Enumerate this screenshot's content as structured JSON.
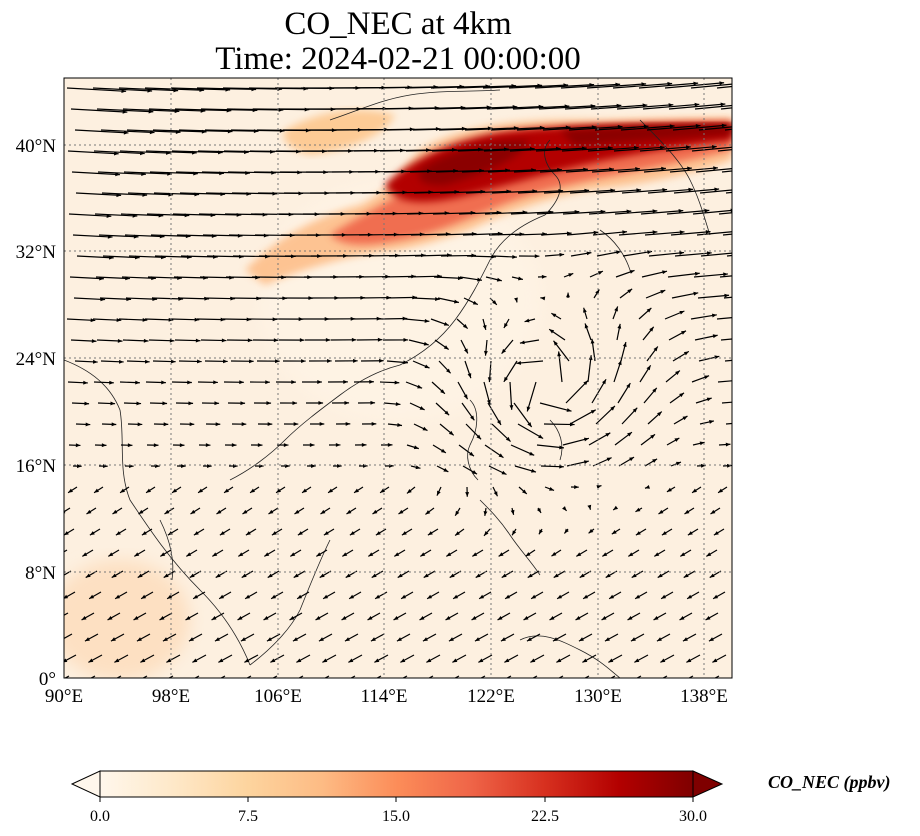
{
  "title": {
    "line1": "CO_NEC at 4km",
    "line2": "Time: 2024-02-21 00:00:00"
  },
  "map": {
    "extent_lon": [
      90,
      140
    ],
    "extent_lat": [
      0,
      45
    ],
    "lon_ticks": [
      "90°E",
      "98°E",
      "106°E",
      "114°E",
      "122°E",
      "130°E",
      "138°E"
    ],
    "lat_ticks": [
      "0°",
      "8°N",
      "16°N",
      "24°N",
      "32°N",
      "40°N"
    ],
    "gridlines": "dotted",
    "field_description_colormap": "OrRd",
    "vectors": "wind"
  },
  "colorbar": {
    "label": "CO_NEC (ppbv)",
    "ticks": [
      "0.0",
      "7.5",
      "15.0",
      "22.5",
      "30.0"
    ],
    "min": 0,
    "max": 30,
    "extend": "both",
    "colors": [
      "#fff7ec",
      "#fee8c8",
      "#fdd49e",
      "#fdbb84",
      "#fc8d59",
      "#ef6548",
      "#d7301f",
      "#b30000",
      "#7f0000"
    ]
  }
}
